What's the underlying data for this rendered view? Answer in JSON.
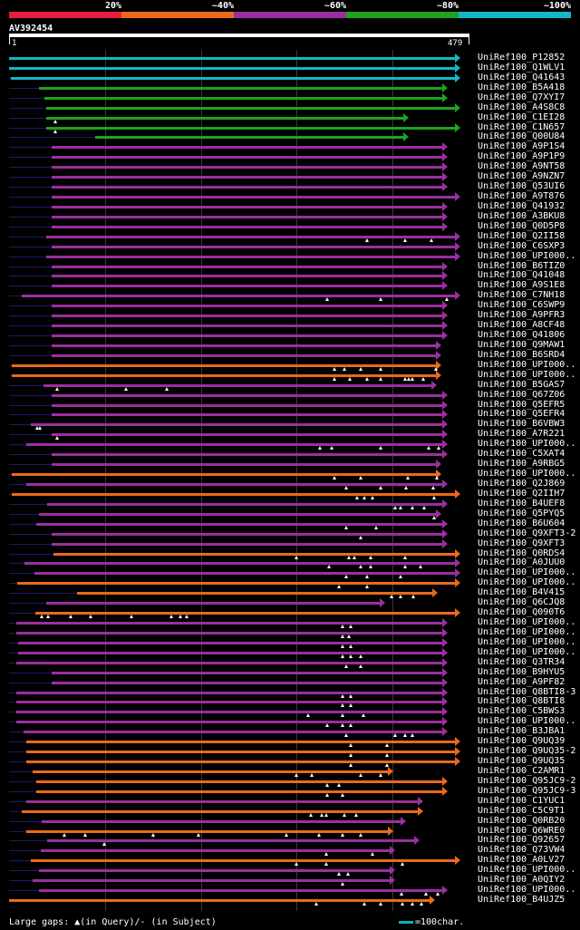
{
  "legend": [
    {
      "label": "20%",
      "color": "#e51e3d"
    },
    {
      "label": "~40%",
      "color": "#ea6a1a"
    },
    {
      "label": "~60%",
      "color": "#9b2f9f"
    },
    {
      "label": "~80%",
      "color": "#1da31d"
    },
    {
      "label": "~100%",
      "color": "#14b8c4"
    }
  ],
  "query": {
    "id": "AV392454",
    "start": "1",
    "end": "479",
    "length": 479
  },
  "colors": {
    "cyan": "#14b8c4",
    "green": "#1da31d",
    "purple": "#9b2f9f",
    "orange": "#ea6a1a",
    "lead": "#1a1a6a"
  },
  "hits": [
    {
      "label": "UniRef100_P12852",
      "color": "cyan",
      "start": 1,
      "end": 479,
      "gaps": []
    },
    {
      "label": "UniRef100_Q1WLV1",
      "color": "cyan",
      "start": 1,
      "end": 479,
      "gaps": []
    },
    {
      "label": "UniRef100_Q41643",
      "color": "cyan",
      "start": 3,
      "end": 479,
      "gaps": []
    },
    {
      "label": "UniRef100_B5A418",
      "color": "green",
      "start": 33,
      "end": 466,
      "gaps": []
    },
    {
      "label": "UniRef100_Q7XYI7",
      "color": "green",
      "start": 38,
      "end": 466,
      "gaps": []
    },
    {
      "label": "UniRef100_A4S8C8",
      "color": "green",
      "start": 40,
      "end": 479,
      "gaps": []
    },
    {
      "label": "UniRef100_C1EI28",
      "color": "green",
      "start": 40,
      "end": 424,
      "gaps": [
        50
      ]
    },
    {
      "label": "UniRef100_C1N657",
      "color": "green",
      "start": 40,
      "end": 479,
      "gaps": [
        50
      ]
    },
    {
      "label": "UniRef100_Q00U84",
      "color": "green",
      "start": 92,
      "end": 424,
      "gaps": []
    },
    {
      "label": "UniRef100_A9P1S4",
      "color": "purple",
      "start": 46,
      "end": 466,
      "gaps": []
    },
    {
      "label": "UniRef100_A9P1P9",
      "color": "purple",
      "start": 46,
      "end": 466,
      "gaps": []
    },
    {
      "label": "UniRef100_A9NT58",
      "color": "purple",
      "start": 46,
      "end": 466,
      "gaps": []
    },
    {
      "label": "UniRef100_A9NZN7",
      "color": "purple",
      "start": 46,
      "end": 466,
      "gaps": []
    },
    {
      "label": "UniRef100_Q53UI6",
      "color": "purple",
      "start": 46,
      "end": 466,
      "gaps": []
    },
    {
      "label": "UniRef100_A9T876",
      "color": "purple",
      "start": 46,
      "end": 479,
      "gaps": []
    },
    {
      "label": "UniRef100_Q41932",
      "color": "purple",
      "start": 46,
      "end": 466,
      "gaps": []
    },
    {
      "label": "UniRef100_A3BKU8",
      "color": "purple",
      "start": 46,
      "end": 466,
      "gaps": []
    },
    {
      "label": "UniRef100_Q0D5P8",
      "color": "purple",
      "start": 46,
      "end": 466,
      "gaps": []
    },
    {
      "label": "UniRef100_Q2II58",
      "color": "purple",
      "start": 40,
      "end": 479,
      "gaps": [
        380,
        420,
        448
      ]
    },
    {
      "label": "UniRef100_C6SXP3",
      "color": "purple",
      "start": 46,
      "end": 479,
      "gaps": []
    },
    {
      "label": "UniRef100_UPI000..",
      "color": "purple",
      "start": 40,
      "end": 479,
      "gaps": []
    },
    {
      "label": "UniRef100_B6TIZ0",
      "color": "purple",
      "start": 46,
      "end": 466,
      "gaps": []
    },
    {
      "label": "UniRef100_Q41048",
      "color": "purple",
      "start": 46,
      "end": 466,
      "gaps": []
    },
    {
      "label": "UniRef100_A9S1E8",
      "color": "purple",
      "start": 46,
      "end": 466,
      "gaps": []
    },
    {
      "label": "UniRef100_C7NH18",
      "color": "purple",
      "start": 14,
      "end": 479,
      "gaps": [
        338,
        395,
        465
      ]
    },
    {
      "label": "UniRef100_C6SWP9",
      "color": "purple",
      "start": 46,
      "end": 466,
      "gaps": []
    },
    {
      "label": "UniRef100_A9PFR3",
      "color": "purple",
      "start": 46,
      "end": 466,
      "gaps": []
    },
    {
      "label": "UniRef100_A8CF48",
      "color": "purple",
      "start": 46,
      "end": 466,
      "gaps": []
    },
    {
      "label": "UniRef100_Q41806",
      "color": "purple",
      "start": 46,
      "end": 466,
      "gaps": []
    },
    {
      "label": "UniRef100_Q9MAW1",
      "color": "purple",
      "start": 46,
      "end": 459,
      "gaps": []
    },
    {
      "label": "UniRef100_B6SRD4",
      "color": "purple",
      "start": 46,
      "end": 459,
      "gaps": []
    },
    {
      "label": "UniRef100_UPI000..",
      "color": "orange",
      "start": 4,
      "end": 459,
      "gaps": [
        346,
        356,
        373,
        395,
        453
      ]
    },
    {
      "label": "UniRef100_UPI000..",
      "color": "orange",
      "start": 4,
      "end": 459,
      "gaps": [
        346,
        362,
        380,
        395,
        420,
        424,
        428,
        440
      ]
    },
    {
      "label": "UniRef100_B5GAS7",
      "color": "purple",
      "start": 37,
      "end": 454,
      "gaps": [
        52,
        125,
        168
      ]
    },
    {
      "label": "UniRef100_Q67Z06",
      "color": "purple",
      "start": 46,
      "end": 466,
      "gaps": []
    },
    {
      "label": "UniRef100_Q5EFR5",
      "color": "purple",
      "start": 46,
      "end": 466,
      "gaps": []
    },
    {
      "label": "UniRef100_Q5EFR4",
      "color": "purple",
      "start": 46,
      "end": 466,
      "gaps": []
    },
    {
      "label": "UniRef100_B6VBW3",
      "color": "purple",
      "start": 24,
      "end": 466,
      "gaps": [
        31,
        34
      ]
    },
    {
      "label": "UniRef100_A7R221",
      "color": "purple",
      "start": 46,
      "end": 466,
      "gaps": [
        52
      ]
    },
    {
      "label": "UniRef100_UPI000..",
      "color": "purple",
      "start": 19,
      "end": 466,
      "gaps": [
        330,
        343,
        395,
        445,
        456
      ]
    },
    {
      "label": "UniRef100_C5XAT4",
      "color": "purple",
      "start": 46,
      "end": 466,
      "gaps": []
    },
    {
      "label": "UniRef100_A9RBG5",
      "color": "purple",
      "start": 46,
      "end": 459,
      "gaps": []
    },
    {
      "label": "UniRef100_UPI000..",
      "color": "orange",
      "start": 4,
      "end": 459,
      "gaps": [
        346,
        373,
        423,
        454
      ]
    },
    {
      "label": "UniRef100_Q2J869",
      "color": "purple",
      "start": 19,
      "end": 466,
      "gaps": [
        358,
        395,
        421,
        450
      ]
    },
    {
      "label": "UniRef100_Q2IIH7",
      "color": "orange",
      "start": 4,
      "end": 479,
      "gaps": [
        370,
        377,
        386,
        451
      ]
    },
    {
      "label": "UniRef100_B4UEF8",
      "color": "purple",
      "start": 41,
      "end": 466,
      "gaps": [
        410,
        416,
        428,
        441
      ]
    },
    {
      "label": "UniRef100_Q5PYQ5",
      "color": "purple",
      "start": 33,
      "end": 459,
      "gaps": [
        451
      ]
    },
    {
      "label": "UniRef100_B6U604",
      "color": "purple",
      "start": 30,
      "end": 466,
      "gaps": [
        358,
        390
      ]
    },
    {
      "label": "UniRef100_Q9XFT3-2",
      "color": "purple",
      "start": 46,
      "end": 466,
      "gaps": [
        373
      ]
    },
    {
      "label": "UniRef100_Q9XFT3",
      "color": "purple",
      "start": 46,
      "end": 466,
      "gaps": []
    },
    {
      "label": "UniRef100_Q0RDS4",
      "color": "orange",
      "start": 48,
      "end": 479,
      "gaps": [
        305,
        361,
        367,
        384,
        420
      ]
    },
    {
      "label": "UniRef100_A0JUU0",
      "color": "purple",
      "start": 17,
      "end": 479,
      "gaps": [
        340,
        373,
        384,
        420,
        437
      ]
    },
    {
      "label": "UniRef100_UPI000..",
      "color": "purple",
      "start": 28,
      "end": 479,
      "gaps": [
        358,
        380,
        416
      ]
    },
    {
      "label": "UniRef100_UPI000..",
      "color": "orange",
      "start": 10,
      "end": 479,
      "gaps": [
        350,
        380
      ]
    },
    {
      "label": "UniRef100_B4V415",
      "color": "orange",
      "start": 73,
      "end": 455,
      "gaps": [
        406,
        416,
        429
      ]
    },
    {
      "label": "UniRef100_Q6CJQ8",
      "color": "purple",
      "start": 40,
      "end": 399,
      "gaps": []
    },
    {
      "label": "UniRef100_Q090T6",
      "color": "orange",
      "start": 29,
      "end": 479,
      "gaps": [
        36,
        42,
        66,
        87,
        131,
        173,
        182,
        189
      ]
    },
    {
      "label": "UniRef100_UPI000..",
      "color": "purple",
      "start": 9,
      "end": 466,
      "gaps": [
        354,
        363
      ]
    },
    {
      "label": "UniRef100_UPI000..",
      "color": "purple",
      "start": 9,
      "end": 466,
      "gaps": [
        354,
        361
      ]
    },
    {
      "label": "UniRef100_UPI000..",
      "color": "purple",
      "start": 11,
      "end": 466,
      "gaps": [
        354,
        363
      ]
    },
    {
      "label": "UniRef100_UPI000..",
      "color": "purple",
      "start": 11,
      "end": 466,
      "gaps": [
        354,
        363,
        373
      ]
    },
    {
      "label": "UniRef100_Q3TR34",
      "color": "purple",
      "start": 9,
      "end": 466,
      "gaps": [
        358,
        373
      ]
    },
    {
      "label": "UniRef100_B9HYU5",
      "color": "purple",
      "start": 46,
      "end": 466,
      "gaps": []
    },
    {
      "label": "UniRef100_A9PF82",
      "color": "purple",
      "start": 46,
      "end": 466,
      "gaps": []
    },
    {
      "label": "UniRef100_Q8BTI8-3",
      "color": "purple",
      "start": 9,
      "end": 466,
      "gaps": [
        354,
        363
      ]
    },
    {
      "label": "UniRef100_Q8BTI8",
      "color": "purple",
      "start": 9,
      "end": 466,
      "gaps": [
        354,
        363
      ]
    },
    {
      "label": "UniRef100_C5BWS3",
      "color": "purple",
      "start": 9,
      "end": 466,
      "gaps": [
        318,
        354,
        376
      ]
    },
    {
      "label": "UniRef100_UPI000..",
      "color": "purple",
      "start": 9,
      "end": 466,
      "gaps": [
        338,
        354,
        363
      ]
    },
    {
      "label": "UniRef100_B3JBA1",
      "color": "purple",
      "start": 16,
      "end": 466,
      "gaps": [
        358,
        410,
        420,
        428
      ]
    },
    {
      "label": "UniRef100_Q9UQ39",
      "color": "orange",
      "start": 19,
      "end": 479,
      "gaps": [
        363,
        401
      ]
    },
    {
      "label": "UniRef100_Q9UQ35-2",
      "color": "orange",
      "start": 19,
      "end": 479,
      "gaps": [
        363,
        401
      ]
    },
    {
      "label": "UniRef100_Q9UQ35",
      "color": "orange",
      "start": 19,
      "end": 479,
      "gaps": [
        363,
        401
      ]
    },
    {
      "label": "UniRef100_C2AMR1",
      "color": "orange",
      "start": 26,
      "end": 408,
      "gaps": [
        305,
        322,
        373,
        395
      ]
    },
    {
      "label": "UniRef100_Q95JC9-2",
      "color": "orange",
      "start": 30,
      "end": 466,
      "gaps": [
        338,
        350
      ]
    },
    {
      "label": "UniRef100_Q95JC9-3",
      "color": "orange",
      "start": 30,
      "end": 466,
      "gaps": [
        338,
        354
      ]
    },
    {
      "label": "UniRef100_C1YUC1",
      "color": "purple",
      "start": 19,
      "end": 440,
      "gaps": []
    },
    {
      "label": "UniRef100_C5C9T1",
      "color": "orange",
      "start": 14,
      "end": 440,
      "gaps": [
        321,
        332,
        337,
        356,
        369
      ]
    },
    {
      "label": "UniRef100_Q0RB20",
      "color": "purple",
      "start": 36,
      "end": 421,
      "gaps": []
    },
    {
      "label": "UniRef100_Q6WRE0",
      "color": "orange",
      "start": 19,
      "end": 408,
      "gaps": [
        60,
        82,
        154,
        202,
        295,
        329,
        354,
        373
      ]
    },
    {
      "label": "UniRef100_Q92657",
      "color": "purple",
      "start": 41,
      "end": 436,
      "gaps": [
        102
      ]
    },
    {
      "label": "UniRef100_Q73VW4",
      "color": "purple",
      "start": 35,
      "end": 410,
      "gaps": [
        337,
        386
      ]
    },
    {
      "label": "UniRef100_A0LV27",
      "color": "orange",
      "start": 24,
      "end": 479,
      "gaps": [
        305,
        337,
        418
      ]
    },
    {
      "label": "UniRef100_UPI000..",
      "color": "purple",
      "start": 33,
      "end": 410,
      "gaps": [
        350,
        360
      ]
    },
    {
      "label": "UniRef100_A0QIY2",
      "color": "purple",
      "start": 26,
      "end": 410,
      "gaps": [
        354
      ]
    },
    {
      "label": "UniRef100_UPI000..",
      "color": "purple",
      "start": 33,
      "end": 466,
      "gaps": [
        417,
        443,
        455
      ]
    },
    {
      "label": "UniRef100_B4UJZ5",
      "color": "orange",
      "start": 1,
      "end": 452,
      "gaps": [
        326,
        377,
        395,
        418,
        428,
        438
      ]
    }
  ],
  "footer": {
    "gaps_text": "Large gaps: ▲(in Query)/- (in Subject)",
    "scale_text": "=100char."
  }
}
